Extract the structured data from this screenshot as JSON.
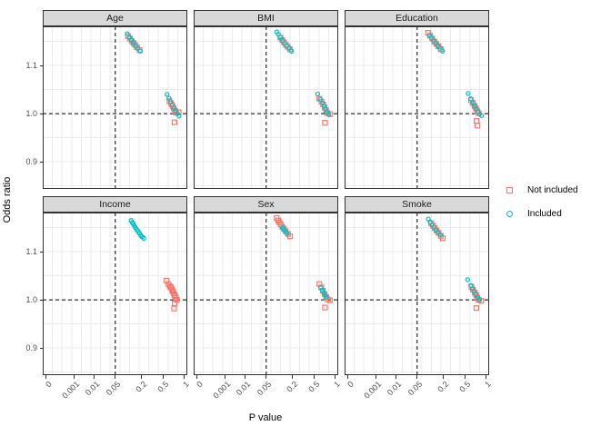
{
  "chart_data": {
    "type": "scatter",
    "title": "",
    "xlabel": "P value",
    "ylabel": "Odds ratio",
    "x_scale": {
      "transform": "p^0.23 (compressed p-value axis)",
      "ticks": [
        0,
        0.001,
        0.01,
        0.05,
        0.2,
        0.5,
        1
      ],
      "tick_labels": [
        "0",
        "0.001",
        "0.01",
        "0.05",
        "0.2",
        "0.5",
        "1"
      ],
      "limits": [
        0,
        1
      ]
    },
    "y_scale": {
      "ticks": [
        1.1,
        1.0,
        0.9
      ],
      "tick_labels": [
        "1.1",
        "1.0",
        "0.9"
      ],
      "limits": [
        0.8435,
        1.1815
      ],
      "minor_grid_step": 0.05
    },
    "reference_lines": {
      "vline_p": 0.05,
      "hline_odds_ratio": 1.0,
      "style": "dashed",
      "color": "#000000"
    },
    "grid": {
      "on": true,
      "color": "#ebebeb",
      "vertical_divisions": 15
    },
    "legend": {
      "position": "right",
      "items": [
        {
          "label": "Not included",
          "marker": "open-square",
          "color": "#F8766D"
        },
        {
          "label": "Included",
          "marker": "open-circle",
          "color": "#00BFC4"
        }
      ]
    },
    "facets": [
      {
        "name": "Age",
        "series": [
          {
            "name": "Not included",
            "marker": "open-square",
            "points": [
              [
                0.105,
                1.161
              ],
              [
                0.116,
                1.156
              ],
              [
                0.127,
                1.151
              ],
              [
                0.138,
                1.147
              ],
              [
                0.15,
                1.143
              ],
              [
                0.164,
                1.138
              ],
              [
                0.186,
                1.132
              ],
              [
                0.62,
                1.026
              ],
              [
                0.66,
                1.021
              ],
              [
                0.69,
                1.016
              ],
              [
                0.72,
                1.011
              ],
              [
                0.75,
                1.006
              ],
              [
                0.78,
                1.002
              ],
              [
                0.85,
                1.003
              ],
              [
                0.74,
                0.982
              ]
            ]
          },
          {
            "name": "Included",
            "marker": "open-circle",
            "points": [
              [
                0.1,
                1.166
              ],
              [
                0.113,
                1.158
              ],
              [
                0.125,
                1.153
              ],
              [
                0.139,
                1.146
              ],
              [
                0.153,
                1.141
              ],
              [
                0.17,
                1.136
              ],
              [
                0.192,
                1.13
              ],
              [
                0.57,
                1.04
              ],
              [
                0.61,
                1.032
              ],
              [
                0.65,
                1.025
              ],
              [
                0.69,
                1.018
              ],
              [
                0.73,
                1.012
              ],
              [
                0.77,
                1.006
              ],
              [
                0.81,
                1.0
              ],
              [
                0.86,
                0.995
              ]
            ]
          }
        ]
      },
      {
        "name": "BMI",
        "series": [
          {
            "name": "Not included",
            "marker": "open-square",
            "points": [
              [
                0.113,
                1.158
              ],
              [
                0.124,
                1.153
              ],
              [
                0.136,
                1.148
              ],
              [
                0.149,
                1.143
              ],
              [
                0.163,
                1.139
              ],
              [
                0.18,
                1.134
              ],
              [
                0.6,
                1.031
              ],
              [
                0.645,
                1.025
              ],
              [
                0.685,
                1.019
              ],
              [
                0.72,
                1.013
              ],
              [
                0.755,
                1.007
              ],
              [
                0.79,
                1.001
              ],
              [
                0.87,
                0.999
              ],
              [
                0.73,
                0.981
              ]
            ]
          },
          {
            "name": "Included",
            "marker": "open-circle",
            "points": [
              [
                0.093,
                1.17
              ],
              [
                0.101,
                1.165
              ],
              [
                0.112,
                1.159
              ],
              [
                0.126,
                1.152
              ],
              [
                0.14,
                1.146
              ],
              [
                0.156,
                1.141
              ],
              [
                0.174,
                1.136
              ],
              [
                0.195,
                1.13
              ],
              [
                0.565,
                1.041
              ],
              [
                0.62,
                1.03
              ],
              [
                0.67,
                1.022
              ],
              [
                0.71,
                1.015
              ],
              [
                0.75,
                1.009
              ],
              [
                0.79,
                1.003
              ],
              [
                0.83,
                0.998
              ]
            ]
          }
        ]
      },
      {
        "name": "Education",
        "series": [
          {
            "name": "Not included",
            "marker": "open-square",
            "points": [
              [
                0.095,
                1.168
              ],
              [
                0.106,
                1.162
              ],
              [
                0.118,
                1.156
              ],
              [
                0.131,
                1.15
              ],
              [
                0.145,
                1.145
              ],
              [
                0.161,
                1.14
              ],
              [
                0.18,
                1.134
              ],
              [
                0.615,
                1.028
              ],
              [
                0.655,
                1.022
              ],
              [
                0.695,
                1.016
              ],
              [
                0.73,
                1.011
              ],
              [
                0.765,
                1.005
              ],
              [
                0.8,
                1.001
              ],
              [
                0.745,
                0.985
              ],
              [
                0.77,
                0.975
              ]
            ]
          },
          {
            "name": "Included",
            "marker": "open-circle",
            "points": [
              [
                0.102,
                1.163
              ],
              [
                0.115,
                1.157
              ],
              [
                0.128,
                1.151
              ],
              [
                0.142,
                1.146
              ],
              [
                0.157,
                1.141
              ],
              [
                0.175,
                1.136
              ],
              [
                0.196,
                1.13
              ],
              [
                0.555,
                1.042
              ],
              [
                0.61,
                1.031
              ],
              [
                0.66,
                1.023
              ],
              [
                0.7,
                1.016
              ],
              [
                0.74,
                1.01
              ],
              [
                0.78,
                1.004
              ],
              [
                0.82,
                0.999
              ],
              [
                0.88,
                0.996
              ]
            ]
          }
        ]
      },
      {
        "name": "Income",
        "series": [
          {
            "name": "Not included",
            "marker": "open-square",
            "points": [
              [
                0.56,
                1.04
              ],
              [
                0.6,
                1.033
              ],
              [
                0.63,
                1.028
              ],
              [
                0.655,
                1.026
              ],
              [
                0.68,
                1.021
              ],
              [
                0.7,
                1.018
              ],
              [
                0.72,
                1.014
              ],
              [
                0.74,
                1.01
              ],
              [
                0.755,
                1.008
              ],
              [
                0.775,
                1.004
              ],
              [
                0.8,
                1.0
              ],
              [
                0.745,
                0.993
              ],
              [
                0.73,
                0.982
              ]
            ]
          },
          {
            "name": "Included",
            "marker": "open-circle",
            "points": [
              [
                0.123,
                1.165
              ],
              [
                0.13,
                1.161
              ],
              [
                0.137,
                1.158
              ],
              [
                0.145,
                1.154
              ],
              [
                0.152,
                1.15
              ],
              [
                0.16,
                1.147
              ],
              [
                0.168,
                1.144
              ],
              [
                0.177,
                1.141
              ],
              [
                0.186,
                1.138
              ],
              [
                0.196,
                1.134
              ],
              [
                0.21,
                1.131
              ],
              [
                0.225,
                1.128
              ]
            ]
          }
        ]
      },
      {
        "name": "Sex",
        "series": [
          {
            "name": "Not included",
            "marker": "open-square",
            "points": [
              [
                0.092,
                1.17
              ],
              [
                0.1,
                1.165
              ],
              [
                0.107,
                1.161
              ],
              [
                0.115,
                1.157
              ],
              [
                0.124,
                1.152
              ],
              [
                0.134,
                1.148
              ],
              [
                0.147,
                1.143
              ],
              [
                0.165,
                1.137
              ],
              [
                0.182,
                1.132
              ],
              [
                0.6,
                1.033
              ],
              [
                0.64,
                1.026
              ],
              [
                0.68,
                1.019
              ],
              [
                0.72,
                1.012
              ],
              [
                0.76,
                1.006
              ],
              [
                0.8,
                1.001
              ],
              [
                0.86,
                0.999
              ],
              [
                0.73,
                0.984
              ]
            ]
          },
          {
            "name": "Included",
            "marker": "open-circle",
            "points": [
              [
                0.126,
                1.15
              ],
              [
                0.133,
                1.147
              ],
              [
                0.141,
                1.144
              ],
              [
                0.149,
                1.141
              ],
              [
                0.158,
                1.138
              ],
              [
                0.63,
                1.025
              ],
              [
                0.665,
                1.02
              ],
              [
                0.7,
                1.015
              ],
              [
                0.73,
                1.01
              ],
              [
                0.76,
                1.006
              ]
            ]
          }
        ]
      },
      {
        "name": "Smoke",
        "series": [
          {
            "name": "Not included",
            "marker": "open-square",
            "points": [
              [
                0.112,
                1.159
              ],
              [
                0.123,
                1.154
              ],
              [
                0.135,
                1.149
              ],
              [
                0.148,
                1.144
              ],
              [
                0.162,
                1.139
              ],
              [
                0.18,
                1.133
              ],
              [
                0.198,
                1.128
              ],
              [
                0.625,
                1.027
              ],
              [
                0.66,
                1.021
              ],
              [
                0.7,
                1.015
              ],
              [
                0.735,
                1.01
              ],
              [
                0.77,
                1.004
              ],
              [
                0.8,
                1.0
              ],
              [
                0.87,
                0.998
              ],
              [
                0.74,
                0.983
              ]
            ]
          },
          {
            "name": "Included",
            "marker": "open-circle",
            "points": [
              [
                0.096,
                1.168
              ],
              [
                0.106,
                1.162
              ],
              [
                0.117,
                1.156
              ],
              [
                0.129,
                1.15
              ],
              [
                0.143,
                1.145
              ],
              [
                0.158,
                1.14
              ],
              [
                0.176,
                1.135
              ],
              [
                0.545,
                1.042
              ],
              [
                0.61,
                1.03
              ],
              [
                0.65,
                1.023
              ],
              [
                0.69,
                1.017
              ],
              [
                0.73,
                1.011
              ],
              [
                0.77,
                1.005
              ],
              [
                0.81,
                1.0
              ]
            ]
          }
        ]
      }
    ]
  },
  "colors": {
    "strip_background": "#d9d9d9",
    "panel_border": "#333333",
    "grid_line": "#ebebeb",
    "not_included": "#F8766D",
    "included": "#00BFC4",
    "reference_line": "#000000",
    "axis_text": "#4d4d4d"
  }
}
